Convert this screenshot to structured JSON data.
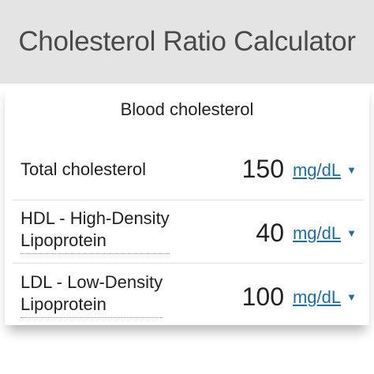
{
  "header": {
    "title": "Cholesterol Ratio Calculator"
  },
  "section": {
    "title": "Blood cholesterol"
  },
  "fields": [
    {
      "label_lines": [
        "Total cholesterol"
      ],
      "value": "150",
      "unit": "mg/dL"
    },
    {
      "label_lines": [
        "HDL - High-Density",
        "Lipoprotein"
      ],
      "value": "40",
      "unit": "mg/dL"
    },
    {
      "label_lines": [
        "LDL - Low-Density",
        "Lipoprotein"
      ],
      "value": "100",
      "unit": "mg/dL"
    }
  ],
  "icons": {
    "dropdown": "▼"
  },
  "colors": {
    "header_bg": "#e4e4e4",
    "link": "#1a6fa8"
  }
}
